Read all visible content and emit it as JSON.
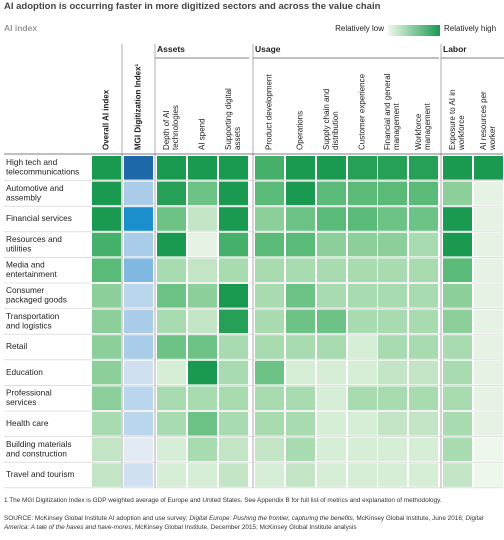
{
  "chart_data": {
    "type": "heatmap",
    "title": "AI adoption is occurring faster in more digitized sectors and across the value chain",
    "subtitle": "AI index",
    "legend": {
      "low": "Relatively low",
      "high": "Relatively high",
      "low_color": "#eef7ec",
      "high_color": "#1a9a50"
    },
    "groups": [
      {
        "name": "Assets"
      },
      {
        "name": "Usage"
      },
      {
        "name": "Labor"
      }
    ],
    "columns": [
      {
        "label": [
          "Overall AI index"
        ]
      },
      {
        "label": [
          "MGI Digitization Index¹"
        ]
      },
      {
        "label": [
          "Depth of AI",
          "technologies"
        ]
      },
      {
        "label": [
          "AI spend"
        ]
      },
      {
        "label": [
          "Supporting digital",
          "assets"
        ]
      },
      {
        "label": [
          "Product development"
        ]
      },
      {
        "label": [
          "Operations"
        ]
      },
      {
        "label": [
          "Supply chain and",
          "distribution"
        ]
      },
      {
        "label": [
          "Customer experience"
        ]
      },
      {
        "label": [
          "Financial and general",
          "management"
        ]
      },
      {
        "label": [
          "Workforce",
          "management"
        ]
      },
      {
        "label": [
          "Exposure to AI in",
          "workforce"
        ]
      },
      {
        "label": [
          "AI resources per",
          "worker"
        ]
      }
    ],
    "rows": [
      {
        "label": [
          "High tech and",
          "telecommunications"
        ],
        "colors": [
          "#1a9a50",
          "#1d68a8",
          "#1a9a50",
          "#1a9a50",
          "#1a9a50",
          "#44b06a",
          "#1a9a50",
          "#1a9a50",
          "#27a057",
          "#27a057",
          "#27a057",
          "#1a9a50",
          "#1a9a50"
        ]
      },
      {
        "label": [
          "Automotive and",
          "assembly"
        ],
        "colors": [
          "#1a9a50",
          "#a9cde9",
          "#27a057",
          "#6cc385",
          "#1a9a50",
          "#5aba78",
          "#1a9a50",
          "#5aba78",
          "#5aba78",
          "#5aba78",
          "#5aba78",
          "#8ccf9a",
          "#e6f3e4"
        ]
      },
      {
        "label": [
          "Financial services"
        ],
        "colors": [
          "#1a9a50",
          "#1a8fcc",
          "#6cc385",
          "#c3e5c6",
          "#1a9a50",
          "#8ccf9a",
          "#6cc385",
          "#5aba78",
          "#5aba78",
          "#6cc385",
          "#6cc385",
          "#1a9a50",
          "#e6f3e4"
        ]
      },
      {
        "label": [
          "Resources and",
          "utilities"
        ],
        "colors": [
          "#44b06a",
          "#a9cde9",
          "#1a9a50",
          "#e6f3e4",
          "#44b06a",
          "#5aba78",
          "#5aba78",
          "#8ccf9a",
          "#8ccf9a",
          "#8ccf9a",
          "#a8dbb0",
          "#1a9a50",
          "#e6f3e4"
        ]
      },
      {
        "label": [
          "Media and",
          "entertainment"
        ],
        "colors": [
          "#5aba78",
          "#7fb8e0",
          "#a8dbb0",
          "#c3e5c6",
          "#a8dbb0",
          "#a8dbb0",
          "#a8dbb0",
          "#a8dbb0",
          "#a8dbb0",
          "#a8dbb0",
          "#a8dbb0",
          "#5aba78",
          "#e6f3e4"
        ]
      },
      {
        "label": [
          "Consumer",
          "packaged goods"
        ],
        "colors": [
          "#8ccf9a",
          "#b9d6ec",
          "#6cc385",
          "#8ccf9a",
          "#1a9a50",
          "#a8dbb0",
          "#6cc385",
          "#a8dbb0",
          "#a8dbb0",
          "#a8dbb0",
          "#a8dbb0",
          "#8ccf9a",
          "#e6f3e4"
        ]
      },
      {
        "label": [
          "Transportation",
          "and logistics"
        ],
        "colors": [
          "#8ccf9a",
          "#a9cde9",
          "#a8dbb0",
          "#c3e5c6",
          "#27a057",
          "#a8dbb0",
          "#6cc385",
          "#6cc385",
          "#a8dbb0",
          "#a8dbb0",
          "#a8dbb0",
          "#8ccf9a",
          "#e6f3e4"
        ]
      },
      {
        "label": [
          "Retail"
        ],
        "colors": [
          "#8ccf9a",
          "#a9cde9",
          "#6cc385",
          "#6cc385",
          "#a8dbb0",
          "#a8dbb0",
          "#a8dbb0",
          "#a8dbb0",
          "#d6eed6",
          "#a8dbb0",
          "#a8dbb0",
          "#a8dbb0",
          "#e6f3e4"
        ]
      },
      {
        "label": [
          "Education"
        ],
        "colors": [
          "#8ccf9a",
          "#cfe1f0",
          "#d6eed6",
          "#1a9a50",
          "#a8dbb0",
          "#6cc385",
          "#d6eed6",
          "#d6eed6",
          "#d6eed6",
          "#c3e5c6",
          "#c3e5c6",
          "#a8dbb0",
          "#e6f3e4"
        ]
      },
      {
        "label": [
          "Professional",
          "services"
        ],
        "colors": [
          "#8ccf9a",
          "#b9d6ec",
          "#a8dbb0",
          "#a8dbb0",
          "#a8dbb0",
          "#a8dbb0",
          "#a8dbb0",
          "#d6eed6",
          "#a8dbb0",
          "#a8dbb0",
          "#a8dbb0",
          "#a8dbb0",
          "#e6f3e4"
        ]
      },
      {
        "label": [
          "Health care"
        ],
        "colors": [
          "#a8dbb0",
          "#b9d6ec",
          "#a8dbb0",
          "#6cc385",
          "#a8dbb0",
          "#a8dbb0",
          "#a8dbb0",
          "#d6eed6",
          "#d6eed6",
          "#c3e5c6",
          "#c3e5c6",
          "#a8dbb0",
          "#e6f3e4"
        ]
      },
      {
        "label": [
          "Building materials",
          "and construction"
        ],
        "colors": [
          "#c3e5c6",
          "#e2ebf4",
          "#d6eed6",
          "#a8dbb0",
          "#c3e5c6",
          "#c3e5c6",
          "#a8dbb0",
          "#d6eed6",
          "#d6eed6",
          "#d6eed6",
          "#d6eed6",
          "#a8dbb0",
          "#eef7ec"
        ]
      },
      {
        "label": [
          "Travel and tourism"
        ],
        "colors": [
          "#c3e5c6",
          "#cfe1f0",
          "#d6eed6",
          "#d6eed6",
          "#c3e5c6",
          "#d6eed6",
          "#c3e5c6",
          "#d6eed6",
          "#d6eed6",
          "#d6eed6",
          "#d6eed6",
          "#c3e5c6",
          "#eef7ec"
        ]
      }
    ],
    "footnote": "1 The MGI Digitization Index is GDP weighted average of Europe and United States. See Appendix B for full list of metrics and explanation of methodology.",
    "source": [
      "SOURCE:  McKinsey Global Institute AI adoption and use survey; ",
      "Digital Europe: Pushing the frontier, capturing the benefits",
      ", McKinsey Global Institute, June 2016; ",
      "Digital America: A tale of the haves and have-mores",
      ", McKinsey Global Institute, December 2015; McKinsey Global Institute analysis"
    ]
  }
}
